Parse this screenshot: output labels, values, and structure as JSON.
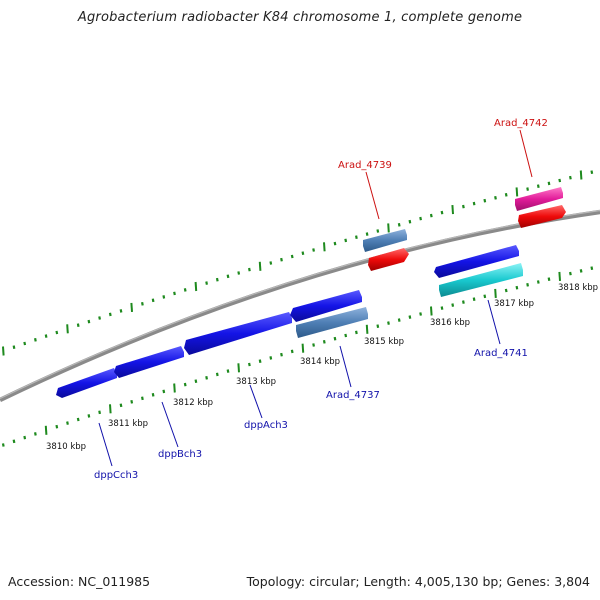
{
  "title": "Agrobacterium radiobacter K84 chromosome 1, complete genome",
  "footer": {
    "accession": "Accession: NC_011985",
    "topology": "Topology: circular; Length: 4,005,130 bp; Genes: 3,804"
  },
  "ticks": [
    "3810 kbp",
    "3811 kbp",
    "3812 kbp",
    "3813 kbp",
    "3814 kbp",
    "3815 kbp",
    "3816 kbp",
    "3817 kbp",
    "3818 kbp"
  ],
  "labels": [
    {
      "text": "dppCch3",
      "color": "#1111aa"
    },
    {
      "text": "dppBch3",
      "color": "#1111aa"
    },
    {
      "text": "dppAch3",
      "color": "#1111aa"
    },
    {
      "text": "Arad_4737",
      "color": "#1111aa"
    },
    {
      "text": "Arad_4739",
      "color": "#cc1111"
    },
    {
      "text": "Arad_4741",
      "color": "#1111aa"
    },
    {
      "text": "Arad_4742",
      "color": "#cc1111"
    }
  ],
  "colors": {
    "cds_blue": "#1414e6",
    "steel": "#4f7fb5",
    "red": "#ee0a0a",
    "magenta": "#e21c9a",
    "cyan": "#19c9cf",
    "backbone": "#8a8a8a",
    "tick_green": "#1e8a1e"
  }
}
